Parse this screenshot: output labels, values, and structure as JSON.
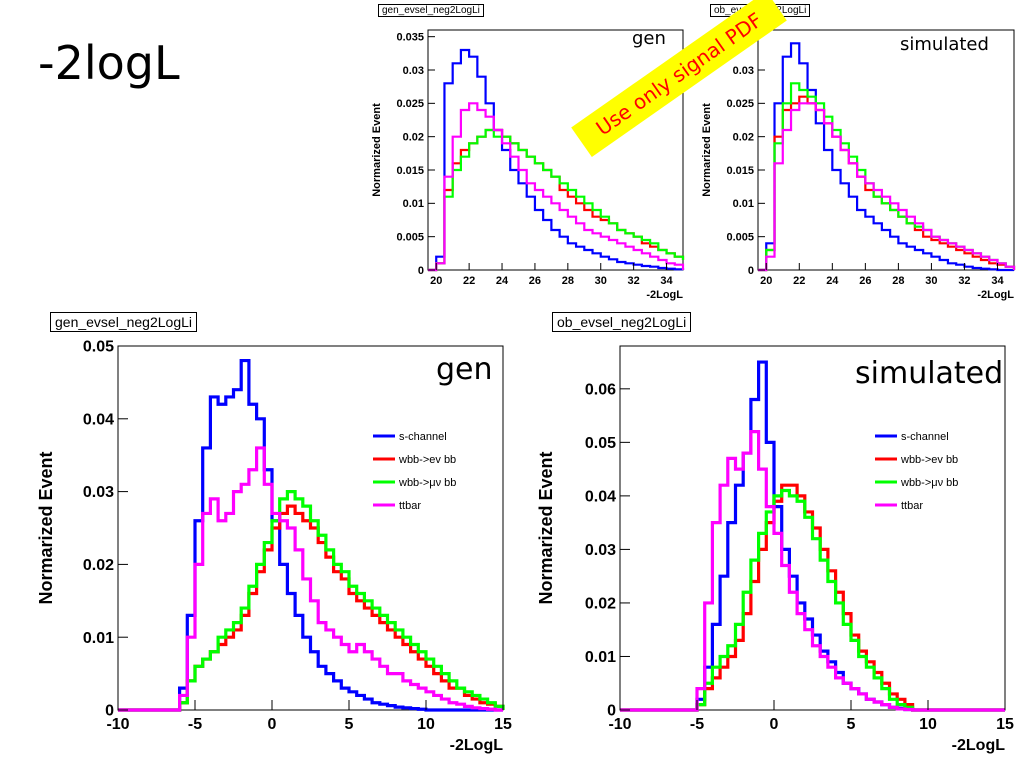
{
  "slide": {
    "title": "-2logL",
    "note": "Use only signal PDF",
    "colors": {
      "s_channel": "#0000ff",
      "wbb_enu": "#ff0000",
      "wbb_munu": "#00ff00",
      "ttbar": "#ff00ff"
    }
  },
  "chart_data": [
    {
      "type": "line",
      "hist_name": "gen_evsel_neg2LogLi",
      "tag": "gen",
      "xlabel": "-2LogL",
      "ylabel": "Normarized Event",
      "xlim": [
        19.5,
        35
      ],
      "ylim": [
        0,
        0.036
      ],
      "xticks": [
        20,
        22,
        24,
        26,
        28,
        30,
        32,
        34
      ],
      "yticks": [
        0,
        0.005,
        0.01,
        0.015,
        0.02,
        0.025,
        0.03,
        0.035
      ],
      "ytick_labels": [
        "0",
        "0.005",
        "0.01",
        "0.015",
        "0.02",
        "0.025",
        "0.03",
        "0.035"
      ],
      "show_legend": false,
      "x": [
        19.5,
        20.0,
        20.5,
        21.0,
        21.5,
        22.0,
        22.5,
        23.0,
        23.5,
        24.0,
        24.5,
        25.0,
        25.5,
        26.0,
        26.5,
        27.0,
        27.5,
        28.0,
        28.5,
        29.0,
        29.5,
        30.0,
        30.5,
        31.0,
        31.5,
        32.0,
        32.5,
        33.0,
        33.5,
        34.0,
        34.5,
        35.0
      ],
      "series": [
        {
          "name": "s-channel",
          "color": "#0000ff",
          "values": [
            0,
            0.002,
            0.028,
            0.031,
            0.033,
            0.032,
            0.029,
            0.025,
            0.021,
            0.018,
            0.015,
            0.013,
            0.011,
            0.009,
            0.0075,
            0.006,
            0.005,
            0.004,
            0.0035,
            0.003,
            0.0025,
            0.002,
            0.0016,
            0.0012,
            0.001,
            0.0008,
            0.0006,
            0.0005,
            0.0003,
            0.0002,
            0.0001,
            0
          ]
        },
        {
          "name": "wbb->ev bb",
          "color": "#ff0000",
          "values": [
            0,
            0.001,
            0.012,
            0.016,
            0.018,
            0.019,
            0.02,
            0.021,
            0.021,
            0.02,
            0.019,
            0.018,
            0.017,
            0.016,
            0.015,
            0.014,
            0.012,
            0.011,
            0.01,
            0.009,
            0.008,
            0.0075,
            0.007,
            0.006,
            0.0055,
            0.005,
            0.004,
            0.0035,
            0.003,
            0.0025,
            0.002,
            0.0015
          ]
        },
        {
          "name": "wbb->μν bb",
          "color": "#00ff00",
          "values": [
            0,
            0.001,
            0.011,
            0.015,
            0.017,
            0.019,
            0.02,
            0.021,
            0.02,
            0.02,
            0.019,
            0.018,
            0.017,
            0.016,
            0.015,
            0.014,
            0.013,
            0.012,
            0.011,
            0.01,
            0.009,
            0.008,
            0.007,
            0.006,
            0.0055,
            0.005,
            0.0045,
            0.004,
            0.003,
            0.0025,
            0.002,
            0.0015
          ]
        },
        {
          "name": "ttbar",
          "color": "#ff00ff",
          "values": [
            0,
            0.001,
            0.014,
            0.02,
            0.024,
            0.025,
            0.024,
            0.023,
            0.021,
            0.019,
            0.017,
            0.015,
            0.013,
            0.012,
            0.011,
            0.01,
            0.009,
            0.008,
            0.007,
            0.006,
            0.0055,
            0.005,
            0.0045,
            0.004,
            0.0035,
            0.003,
            0.0025,
            0.002,
            0.0015,
            0.001,
            0.0008,
            0
          ]
        }
      ]
    },
    {
      "type": "line",
      "hist_name": "ob_evsel_neg2LogLi",
      "tag": "simulated",
      "xlabel": "-2LogL",
      "ylabel": "Normarized Event",
      "xlim": [
        19.5,
        35
      ],
      "ylim": [
        0,
        0.036
      ],
      "xticks": [
        20,
        22,
        24,
        26,
        28,
        30,
        32,
        34
      ],
      "yticks": [
        0,
        0.005,
        0.01,
        0.015,
        0.02,
        0.025,
        0.03
      ],
      "ytick_labels": [
        "0",
        "0.005",
        "0.01",
        "0.015",
        "0.02",
        "0.025",
        "0.03"
      ],
      "show_legend": false,
      "x": [
        19.5,
        20.0,
        20.5,
        21.0,
        21.5,
        22.0,
        22.5,
        23.0,
        23.5,
        24.0,
        24.5,
        25.0,
        25.5,
        26.0,
        26.5,
        27.0,
        27.5,
        28.0,
        28.5,
        29.0,
        29.5,
        30.0,
        30.5,
        31.0,
        31.5,
        32.0,
        32.5,
        33.0,
        33.5,
        34.0,
        34.5,
        35.0
      ],
      "series": [
        {
          "name": "s-channel",
          "color": "#0000ff",
          "values": [
            0,
            0.004,
            0.025,
            0.032,
            0.034,
            0.031,
            0.027,
            0.022,
            0.018,
            0.015,
            0.013,
            0.011,
            0.009,
            0.008,
            0.007,
            0.006,
            0.005,
            0.004,
            0.0035,
            0.003,
            0.0025,
            0.002,
            0.0015,
            0.001,
            0.0008,
            0.0005,
            0.0003,
            0.0002,
            0.0001,
            0,
            0,
            0
          ]
        },
        {
          "name": "wbb->ev bb",
          "color": "#ff0000",
          "values": [
            0,
            0.003,
            0.02,
            0.024,
            0.025,
            0.026,
            0.025,
            0.024,
            0.022,
            0.02,
            0.018,
            0.016,
            0.014,
            0.012,
            0.011,
            0.01,
            0.009,
            0.008,
            0.007,
            0.006,
            0.005,
            0.0045,
            0.004,
            0.0035,
            0.003,
            0.0025,
            0.002,
            0.0015,
            0.001,
            0.0008,
            0.0005,
            0
          ]
        },
        {
          "name": "wbb->μν bb",
          "color": "#00ff00",
          "values": [
            0,
            0.003,
            0.019,
            0.025,
            0.028,
            0.027,
            0.026,
            0.025,
            0.023,
            0.021,
            0.019,
            0.017,
            0.015,
            0.013,
            0.011,
            0.01,
            0.009,
            0.008,
            0.007,
            0.0065,
            0.006,
            0.005,
            0.0045,
            0.004,
            0.0035,
            0.003,
            0.0025,
            0.002,
            0.0015,
            0.001,
            0.0005,
            0
          ]
        },
        {
          "name": "ttbar",
          "color": "#ff00ff",
          "values": [
            0,
            0.002,
            0.016,
            0.021,
            0.024,
            0.025,
            0.025,
            0.024,
            0.022,
            0.02,
            0.018,
            0.016,
            0.014,
            0.013,
            0.012,
            0.011,
            0.01,
            0.009,
            0.008,
            0.007,
            0.006,
            0.005,
            0.0045,
            0.004,
            0.0035,
            0.003,
            0.0025,
            0.002,
            0.0015,
            0.001,
            0.0005,
            0
          ]
        }
      ]
    },
    {
      "type": "line",
      "hist_name": "gen_evsel_neg2LogLi",
      "tag": "gen",
      "xlabel": "-2LogL",
      "ylabel": "Normarized Event",
      "xlim": [
        -10,
        15
      ],
      "ylim": [
        0,
        0.05
      ],
      "xticks": [
        -10,
        -5,
        0,
        5,
        10,
        15
      ],
      "xtick_labels": [
        "-10",
        "-5",
        "0",
        "5",
        "10",
        "15"
      ],
      "yticks": [
        0,
        0.01,
        0.02,
        0.03,
        0.04,
        0.05
      ],
      "ytick_labels": [
        "0",
        "0.01",
        "0.02",
        "0.03",
        "0.04",
        "0.05"
      ],
      "show_legend": true,
      "legend_position": "right",
      "x": [
        -10,
        -9.5,
        -9,
        -8.5,
        -8,
        -7.5,
        -7,
        -6.5,
        -6,
        -5.5,
        -5,
        -4.5,
        -4,
        -3.5,
        -3,
        -2.5,
        -2,
        -1.5,
        -1,
        -0.5,
        0,
        0.5,
        1,
        1.5,
        2,
        2.5,
        3,
        3.5,
        4,
        4.5,
        5,
        5.5,
        6,
        6.5,
        7,
        7.5,
        8,
        8.5,
        9,
        9.5,
        10,
        10.5,
        11,
        11.5,
        12,
        12.5,
        13,
        13.5,
        14,
        14.5,
        15
      ],
      "series": [
        {
          "name": "s-channel",
          "color": "#0000ff",
          "values": [
            0,
            0,
            0,
            0,
            0,
            0,
            0,
            0,
            0.003,
            0.013,
            0.026,
            0.036,
            0.043,
            0.042,
            0.043,
            0.044,
            0.048,
            0.042,
            0.04,
            0.033,
            0.026,
            0.02,
            0.016,
            0.013,
            0.01,
            0.008,
            0.006,
            0.005,
            0.004,
            0.003,
            0.0025,
            0.002,
            0.0015,
            0.001,
            0.0008,
            0.0006,
            0.0004,
            0.0003,
            0.0002,
            0.0001,
            0,
            0,
            0,
            0,
            0,
            0,
            0,
            0,
            0,
            0,
            0
          ]
        },
        {
          "name": "wbb->ev bb",
          "color": "#ff0000",
          "values": [
            0,
            0,
            0,
            0,
            0,
            0,
            0,
            0,
            0.001,
            0.004,
            0.006,
            0.007,
            0.008,
            0.009,
            0.01,
            0.011,
            0.013,
            0.016,
            0.019,
            0.022,
            0.025,
            0.027,
            0.028,
            0.027,
            0.026,
            0.025,
            0.023,
            0.021,
            0.019,
            0.018,
            0.016,
            0.015,
            0.014,
            0.013,
            0.012,
            0.011,
            0.01,
            0.009,
            0.008,
            0.007,
            0.006,
            0.005,
            0.004,
            0.003,
            0.003,
            0.002,
            0.0015,
            0.001,
            0.0008,
            0.0005,
            0
          ]
        },
        {
          "name": "wbb->μν bb",
          "color": "#00ff00",
          "values": [
            0,
            0,
            0,
            0,
            0,
            0,
            0,
            0,
            0.001,
            0.004,
            0.006,
            0.007,
            0.008,
            0.01,
            0.011,
            0.012,
            0.014,
            0.017,
            0.02,
            0.023,
            0.026,
            0.029,
            0.03,
            0.029,
            0.028,
            0.026,
            0.024,
            0.022,
            0.02,
            0.019,
            0.017,
            0.016,
            0.015,
            0.014,
            0.013,
            0.012,
            0.011,
            0.01,
            0.009,
            0.008,
            0.007,
            0.006,
            0.005,
            0.004,
            0.003,
            0.0025,
            0.002,
            0.0015,
            0.001,
            0.0005,
            0
          ]
        },
        {
          "name": "ttbar",
          "color": "#ff00ff",
          "values": [
            0,
            0,
            0,
            0,
            0,
            0,
            0,
            0,
            0.002,
            0.01,
            0.02,
            0.027,
            0.029,
            0.026,
            0.027,
            0.03,
            0.031,
            0.033,
            0.036,
            0.031,
            0.027,
            0.026,
            0.025,
            0.022,
            0.018,
            0.015,
            0.012,
            0.011,
            0.01,
            0.009,
            0.008,
            0.009,
            0.008,
            0.007,
            0.006,
            0.005,
            0.005,
            0.004,
            0.0035,
            0.003,
            0.0025,
            0.002,
            0.0015,
            0.001,
            0.0008,
            0.0005,
            0.0003,
            0.0002,
            0.0001,
            0,
            0
          ]
        }
      ]
    },
    {
      "type": "line",
      "hist_name": "ob_evsel_neg2LogLi",
      "tag": "simulated",
      "xlabel": "-2LogL",
      "ylabel": "Normarized Event",
      "xlim": [
        -10,
        15
      ],
      "ylim": [
        0,
        0.068
      ],
      "xticks": [
        -10,
        -5,
        0,
        5,
        10,
        15
      ],
      "xtick_labels": [
        "-10",
        "-5",
        "0",
        "5",
        "10",
        "15"
      ],
      "yticks": [
        0,
        0.01,
        0.02,
        0.03,
        0.04,
        0.05,
        0.06
      ],
      "ytick_labels": [
        "0",
        "0.01",
        "0.02",
        "0.03",
        "0.04",
        "0.05",
        "0.06"
      ],
      "show_legend": true,
      "legend_position": "right",
      "x": [
        -10,
        -9.5,
        -9,
        -8.5,
        -8,
        -7.5,
        -7,
        -6.5,
        -6,
        -5.5,
        -5,
        -4.5,
        -4,
        -3.5,
        -3,
        -2.5,
        -2,
        -1.5,
        -1,
        -0.5,
        0,
        0.5,
        1,
        1.5,
        2,
        2.5,
        3,
        3.5,
        4,
        4.5,
        5,
        5.5,
        6,
        6.5,
        7,
        7.5,
        8,
        8.5,
        9,
        9.5,
        10,
        10.5,
        11,
        11.5,
        12,
        12.5,
        13,
        13.5,
        14,
        14.5,
        15
      ],
      "series": [
        {
          "name": "s-channel",
          "color": "#0000ff",
          "values": [
            0,
            0,
            0,
            0,
            0,
            0,
            0,
            0,
            0,
            0,
            0.002,
            0.008,
            0.016,
            0.025,
            0.035,
            0.042,
            0.048,
            0.058,
            0.065,
            0.05,
            0.038,
            0.03,
            0.025,
            0.02,
            0.017,
            0.014,
            0.011,
            0.009,
            0.007,
            0.005,
            0.004,
            0.003,
            0.002,
            0.0015,
            0.001,
            0.0005,
            0.0003,
            0.0001,
            0,
            0,
            0,
            0,
            0,
            0,
            0,
            0,
            0,
            0,
            0,
            0,
            0
          ]
        },
        {
          "name": "wbb->ev bb",
          "color": "#ff0000",
          "values": [
            0,
            0,
            0,
            0,
            0,
            0,
            0,
            0,
            0,
            0,
            0.001,
            0.004,
            0.006,
            0.008,
            0.01,
            0.013,
            0.018,
            0.024,
            0.03,
            0.035,
            0.039,
            0.042,
            0.042,
            0.04,
            0.037,
            0.034,
            0.03,
            0.026,
            0.022,
            0.018,
            0.014,
            0.011,
            0.009,
            0.007,
            0.005,
            0.003,
            0.002,
            0.001,
            0,
            0,
            0,
            0,
            0,
            0,
            0,
            0,
            0,
            0,
            0,
            0,
            0
          ]
        },
        {
          "name": "wbb->μν bb",
          "color": "#00ff00",
          "values": [
            0,
            0,
            0,
            0,
            0,
            0,
            0,
            0,
            0,
            0,
            0.001,
            0.005,
            0.008,
            0.01,
            0.012,
            0.016,
            0.022,
            0.028,
            0.033,
            0.037,
            0.04,
            0.041,
            0.04,
            0.039,
            0.036,
            0.032,
            0.028,
            0.024,
            0.02,
            0.016,
            0.013,
            0.01,
            0.008,
            0.006,
            0.004,
            0.002,
            0.001,
            0.0005,
            0,
            0,
            0,
            0,
            0,
            0,
            0,
            0,
            0,
            0,
            0,
            0,
            0
          ]
        },
        {
          "name": "ttbar",
          "color": "#ff00ff",
          "values": [
            0,
            0,
            0,
            0,
            0,
            0,
            0,
            0,
            0,
            0,
            0.004,
            0.02,
            0.035,
            0.042,
            0.047,
            0.045,
            0.048,
            0.052,
            0.045,
            0.038,
            0.033,
            0.027,
            0.022,
            0.018,
            0.015,
            0.012,
            0.01,
            0.008,
            0.006,
            0.005,
            0.004,
            0.003,
            0.002,
            0.0015,
            0.001,
            0.0005,
            0.0002,
            0.0001,
            0,
            0,
            0,
            0,
            0,
            0,
            0,
            0,
            0,
            0,
            0,
            0,
            0
          ]
        }
      ]
    }
  ]
}
